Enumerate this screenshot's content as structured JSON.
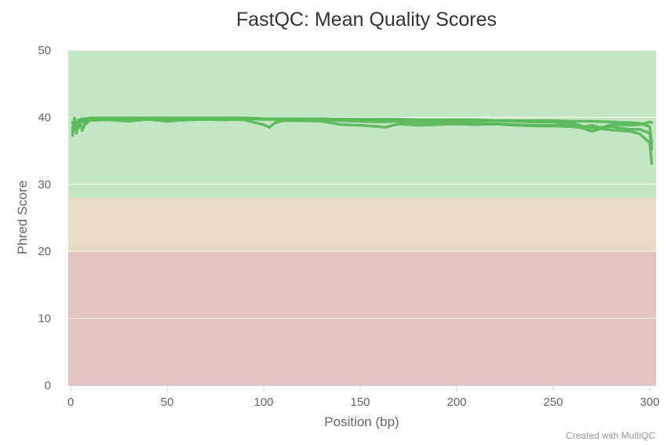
{
  "credit": "Created with MultiQC",
  "colors": {
    "series": "#5cb85c",
    "band_good": "#c3e6c3",
    "band_warn": "#e6dcc3",
    "band_fail": "#e6c3c3",
    "gridline": "#ffffff",
    "axis_line": "#ccd6eb"
  },
  "chart_data": {
    "type": "line",
    "title": "FastQC: Mean Quality Scores",
    "xlabel": "Position (bp)",
    "ylabel": "Phred Score",
    "xlim": [
      0,
      301
    ],
    "ylim": [
      0,
      50
    ],
    "x_ticks": [
      0,
      50,
      100,
      150,
      200,
      250,
      300
    ],
    "y_ticks": [
      0,
      10,
      20,
      30,
      40,
      50
    ],
    "grid": true,
    "legend": "none",
    "bands": [
      {
        "name": "good",
        "from": 28,
        "to": 50
      },
      {
        "name": "warning",
        "from": 20,
        "to": 28
      },
      {
        "name": "fail",
        "from": 0,
        "to": 20
      }
    ],
    "series": [
      {
        "x": [
          1,
          2,
          3,
          4,
          5,
          6,
          8,
          10,
          15,
          20,
          30,
          40,
          50,
          60,
          70,
          80,
          90,
          100,
          110,
          120,
          130,
          140,
          150,
          160,
          170,
          180,
          190,
          200,
          210,
          220,
          230,
          240,
          250,
          260,
          270,
          280,
          290,
          295,
          300,
          301
        ],
        "values": [
          37.3,
          39.9,
          38.9,
          39.4,
          39.7,
          39.8,
          39.8,
          39.9,
          39.9,
          39.9,
          39.9,
          39.9,
          39.9,
          39.9,
          39.9,
          39.9,
          39.9,
          39.8,
          39.8,
          39.8,
          39.8,
          39.7,
          39.7,
          39.7,
          39.7,
          39.6,
          39.6,
          39.6,
          39.6,
          39.5,
          39.5,
          39.5,
          39.5,
          39.4,
          39.4,
          39.3,
          39.2,
          39.1,
          38.6,
          36.2
        ]
      },
      {
        "x": [
          1,
          2,
          3,
          4,
          5,
          6,
          8,
          10,
          15,
          20,
          30,
          40,
          50,
          60,
          70,
          80,
          90,
          100,
          110,
          120,
          130,
          140,
          150,
          160,
          170,
          180,
          190,
          200,
          210,
          220,
          230,
          240,
          250,
          260,
          270,
          280,
          290,
          295,
          300,
          301
        ],
        "values": [
          38.4,
          39.3,
          38.2,
          39.6,
          39.2,
          38.0,
          39.6,
          39.5,
          39.6,
          39.6,
          39.4,
          39.7,
          39.4,
          39.6,
          39.7,
          39.6,
          39.8,
          39.7,
          39.7,
          39.6,
          39.6,
          39.5,
          39.4,
          39.3,
          39.4,
          39.2,
          39.2,
          39.1,
          39.1,
          39.0,
          38.9,
          38.8,
          38.8,
          38.9,
          38.4,
          38.6,
          38.2,
          38.2,
          37.6,
          35.2
        ]
      },
      {
        "x": [
          1,
          2,
          3,
          4,
          5,
          6,
          8,
          10,
          15,
          20,
          30,
          40,
          50,
          60,
          70,
          80,
          90,
          100,
          103,
          106,
          110,
          120,
          130,
          140,
          150,
          155,
          160,
          163,
          170,
          180,
          190,
          200,
          210,
          220,
          230,
          240,
          250,
          260,
          265,
          270,
          275,
          280,
          290,
          295,
          300,
          301
        ],
        "values": [
          39.2,
          38.6,
          39.0,
          38.4,
          39.6,
          39.4,
          39.0,
          39.7,
          39.6,
          39.7,
          39.7,
          39.7,
          39.6,
          39.7,
          39.7,
          39.7,
          39.6,
          38.9,
          38.5,
          39.2,
          39.5,
          39.5,
          39.4,
          38.9,
          38.8,
          38.7,
          38.6,
          38.5,
          39.0,
          38.8,
          38.9,
          39.0,
          38.9,
          39.0,
          38.8,
          38.7,
          38.7,
          38.6,
          38.4,
          37.9,
          38.3,
          38.1,
          37.9,
          37.5,
          36.2,
          33.1
        ]
      },
      {
        "x": [
          1,
          2,
          3,
          4,
          5,
          6,
          8,
          10,
          15,
          20,
          30,
          40,
          50,
          60,
          70,
          80,
          90,
          100,
          110,
          120,
          130,
          140,
          150,
          160,
          170,
          180,
          190,
          200,
          210,
          220,
          230,
          240,
          250,
          260,
          266,
          270,
          275,
          280,
          285,
          290,
          295,
          300,
          301
        ],
        "values": [
          38.0,
          39.5,
          37.6,
          39.2,
          39.7,
          39.5,
          39.7,
          39.8,
          39.8,
          39.8,
          39.8,
          39.8,
          39.8,
          39.8,
          39.8,
          39.8,
          39.8,
          39.7,
          39.7,
          39.7,
          39.7,
          39.7,
          39.6,
          39.6,
          39.6,
          39.6,
          39.6,
          39.5,
          39.5,
          39.5,
          39.4,
          39.3,
          39.3,
          39.1,
          38.6,
          38.8,
          38.4,
          38.9,
          38.9,
          38.8,
          38.9,
          39.3,
          39.2
        ]
      }
    ]
  }
}
